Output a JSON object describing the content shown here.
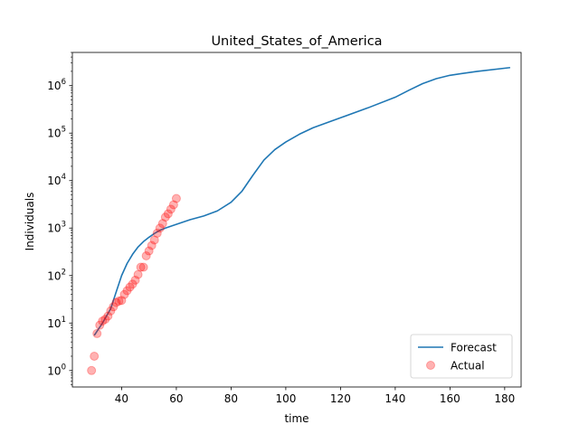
{
  "chart_data": {
    "type": "line",
    "title": "United_States_of_America",
    "xlabel": "time",
    "ylabel": "Individuals",
    "xlim": [
      22,
      186
    ],
    "ylim": [
      0.45,
      5000000
    ],
    "yscale": "log",
    "grid": false,
    "legend_position": "lower-right",
    "x_ticks": [
      40,
      60,
      80,
      100,
      120,
      140,
      160,
      180
    ],
    "y_ticks": [
      {
        "value": 1,
        "base": "10",
        "exp": "0"
      },
      {
        "value": 10,
        "base": "10",
        "exp": "1"
      },
      {
        "value": 100,
        "base": "10",
        "exp": "2"
      },
      {
        "value": 1000,
        "base": "10",
        "exp": "3"
      },
      {
        "value": 10000,
        "base": "10",
        "exp": "4"
      },
      {
        "value": 100000,
        "base": "10",
        "exp": "5"
      },
      {
        "value": 1000000,
        "base": "10",
        "exp": "6"
      }
    ],
    "series": [
      {
        "name": "Forecast",
        "kind": "line",
        "color": "#1f77b4",
        "points": [
          [
            30,
            5.5
          ],
          [
            33,
            10
          ],
          [
            36,
            20
          ],
          [
            38,
            45
          ],
          [
            40,
            100
          ],
          [
            42,
            180
          ],
          [
            44,
            280
          ],
          [
            46,
            400
          ],
          [
            48,
            520
          ],
          [
            50,
            640
          ],
          [
            52,
            770
          ],
          [
            54,
            900
          ],
          [
            56,
            1000
          ],
          [
            60,
            1200
          ],
          [
            65,
            1500
          ],
          [
            70,
            1800
          ],
          [
            75,
            2300
          ],
          [
            80,
            3500
          ],
          [
            84,
            6000
          ],
          [
            88,
            13000
          ],
          [
            92,
            27000
          ],
          [
            96,
            45000
          ],
          [
            100,
            65000
          ],
          [
            105,
            95000
          ],
          [
            110,
            130000
          ],
          [
            120,
            210000
          ],
          [
            130,
            340000
          ],
          [
            140,
            570000
          ],
          [
            145,
            800000
          ],
          [
            150,
            1100000
          ],
          [
            155,
            1400000
          ],
          [
            160,
            1650000
          ],
          [
            170,
            2000000
          ],
          [
            182,
            2400000
          ]
        ]
      },
      {
        "name": "Actual",
        "kind": "scatter",
        "color": "#ff0000",
        "opacity": 0.3,
        "points": [
          [
            29,
            1
          ],
          [
            30,
            2
          ],
          [
            31,
            6
          ],
          [
            32,
            9
          ],
          [
            33,
            11
          ],
          [
            34,
            12
          ],
          [
            35,
            14
          ],
          [
            36,
            18
          ],
          [
            37,
            22
          ],
          [
            38,
            27
          ],
          [
            39,
            29
          ],
          [
            40,
            30
          ],
          [
            41,
            40
          ],
          [
            42,
            48
          ],
          [
            43,
            57
          ],
          [
            44,
            66
          ],
          [
            45,
            80
          ],
          [
            46,
            105
          ],
          [
            47,
            150
          ],
          [
            48,
            150
          ],
          [
            49,
            260
          ],
          [
            50,
            330
          ],
          [
            51,
            430
          ],
          [
            52,
            560
          ],
          [
            53,
            780
          ],
          [
            54,
            1000
          ],
          [
            55,
            1250
          ],
          [
            56,
            1700
          ],
          [
            57,
            2000
          ],
          [
            58,
            2500
          ],
          [
            59,
            3100
          ],
          [
            60,
            4200
          ]
        ]
      }
    ]
  }
}
